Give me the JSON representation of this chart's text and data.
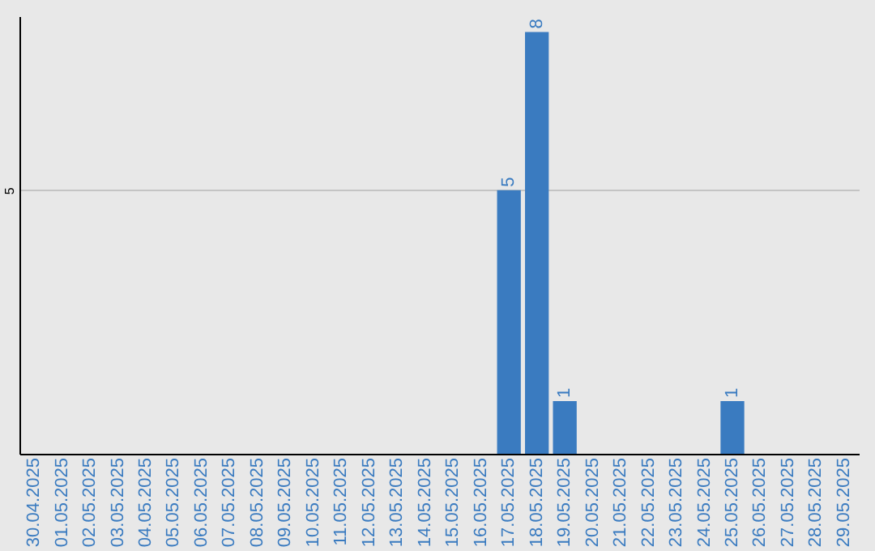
{
  "chart_data": {
    "type": "bar",
    "categories": [
      "30.04.2025",
      "01.05.2025",
      "02.05.2025",
      "03.05.2025",
      "04.05.2025",
      "05.05.2025",
      "06.05.2025",
      "07.05.2025",
      "08.05.2025",
      "09.05.2025",
      "10.05.2025",
      "11.05.2025",
      "12.05.2025",
      "13.05.2025",
      "14.05.2025",
      "15.05.2025",
      "16.05.2025",
      "17.05.2025",
      "18.05.2025",
      "19.05.2025",
      "20.05.2025",
      "21.05.2025",
      "22.05.2025",
      "23.05.2025",
      "24.05.2025",
      "25.05.2025",
      "26.05.2025",
      "27.05.2025",
      "28.05.2025",
      "29.05.2025"
    ],
    "values": [
      null,
      null,
      null,
      null,
      null,
      null,
      null,
      null,
      null,
      null,
      null,
      null,
      null,
      null,
      null,
      null,
      null,
      5,
      8,
      1,
      null,
      null,
      null,
      null,
      null,
      1,
      null,
      null,
      null,
      null
    ],
    "data_labels": true,
    "color": "#3a7bc0",
    "ylim": [
      0,
      8.3
    ],
    "yticks": [
      5
    ],
    "grid": "y"
  }
}
